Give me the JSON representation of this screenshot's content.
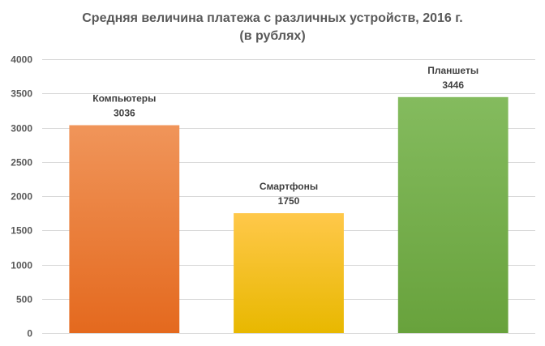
{
  "chart_data": {
    "type": "bar",
    "title": "Средняя величина платежа с различных устройств, 2016 г.",
    "subtitle": "(в рублях)",
    "categories": [
      "Компьютеры",
      "Смартфоны",
      "Планшеты"
    ],
    "values": [
      3036,
      1750,
      3446
    ],
    "ylim": [
      0,
      4000
    ],
    "yticks": [
      0,
      500,
      1000,
      1500,
      2000,
      2500,
      3000,
      3500,
      4000
    ],
    "grid": true,
    "legend": "none",
    "bar_colors": [
      {
        "top": "#f0955a",
        "bottom": "#e4691e"
      },
      {
        "top": "#ffc84a",
        "bottom": "#e8b800"
      },
      {
        "top": "#84bb5e",
        "bottom": "#68a23c"
      }
    ]
  }
}
